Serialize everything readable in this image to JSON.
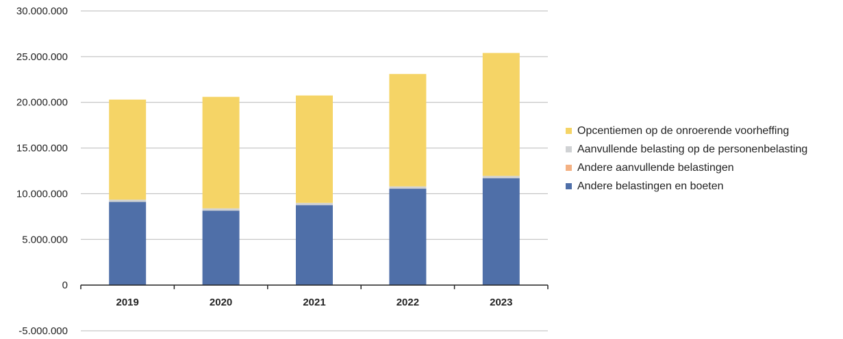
{
  "chart_data": {
    "type": "bar",
    "stacked": true,
    "categories": [
      "2019",
      "2020",
      "2021",
      "2022",
      "2023"
    ],
    "series": [
      {
        "name": "Andere belastingen en boeten",
        "color": "#4f6fa8",
        "values": [
          9100000,
          8150000,
          8750000,
          10550000,
          11700000
        ]
      },
      {
        "name": "Andere aanvullende belastingen",
        "color": "#f4b183",
        "values": [
          0,
          0,
          0,
          0,
          0
        ]
      },
      {
        "name": "Aanvullende belasting op de personenbelasting",
        "color": "#d0d2d4",
        "values": [
          250000,
          250000,
          250000,
          250000,
          250000
        ]
      },
      {
        "name": "Opcentiemen op de onroerende voorheffing",
        "color": "#f5d466",
        "values": [
          10950000,
          12200000,
          11750000,
          12300000,
          13450000
        ]
      }
    ],
    "yticks": [
      "30.000.000",
      "25.000.000",
      "20.000.000",
      "15.000.000",
      "10.000.000",
      "5.000.000",
      "0",
      "-5.000.000"
    ],
    "ylim": [
      -5000000,
      30000000
    ],
    "grid": true,
    "legend_position": "right"
  }
}
